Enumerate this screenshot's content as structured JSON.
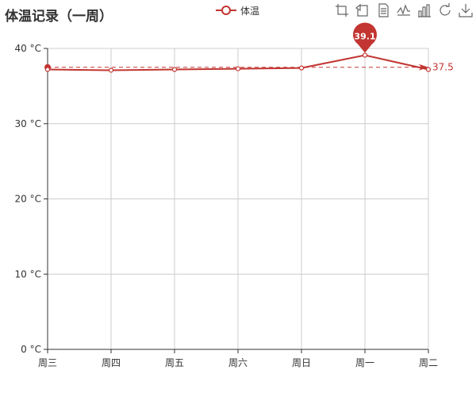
{
  "chart_data": {
    "type": "line",
    "title": "体温记录（一周）",
    "categories": [
      "周三",
      "周四",
      "周五",
      "周六",
      "周日",
      "周一",
      "周二"
    ],
    "series": [
      {
        "name": "体温",
        "values": [
          37.2,
          37.1,
          37.2,
          37.3,
          37.4,
          39.1,
          37.2
        ],
        "color": "#c23531"
      }
    ],
    "ylim": [
      0,
      40
    ],
    "yticks": [
      0,
      10,
      20,
      30,
      40
    ],
    "y_unit": "°C",
    "grid": true,
    "legend_position": "top-center",
    "mark_point": {
      "type": "max",
      "label": "39.1",
      "category": "周一",
      "value": 39.1
    },
    "mark_line": {
      "type": "average",
      "label": "37.5",
      "value": 37.5
    }
  },
  "toolbox": {
    "icons": [
      "zoom-icon",
      "zoom-reset-icon",
      "data-view-icon",
      "line-chart-icon",
      "bar-chart-icon",
      "restore-icon",
      "save-image-icon"
    ]
  }
}
